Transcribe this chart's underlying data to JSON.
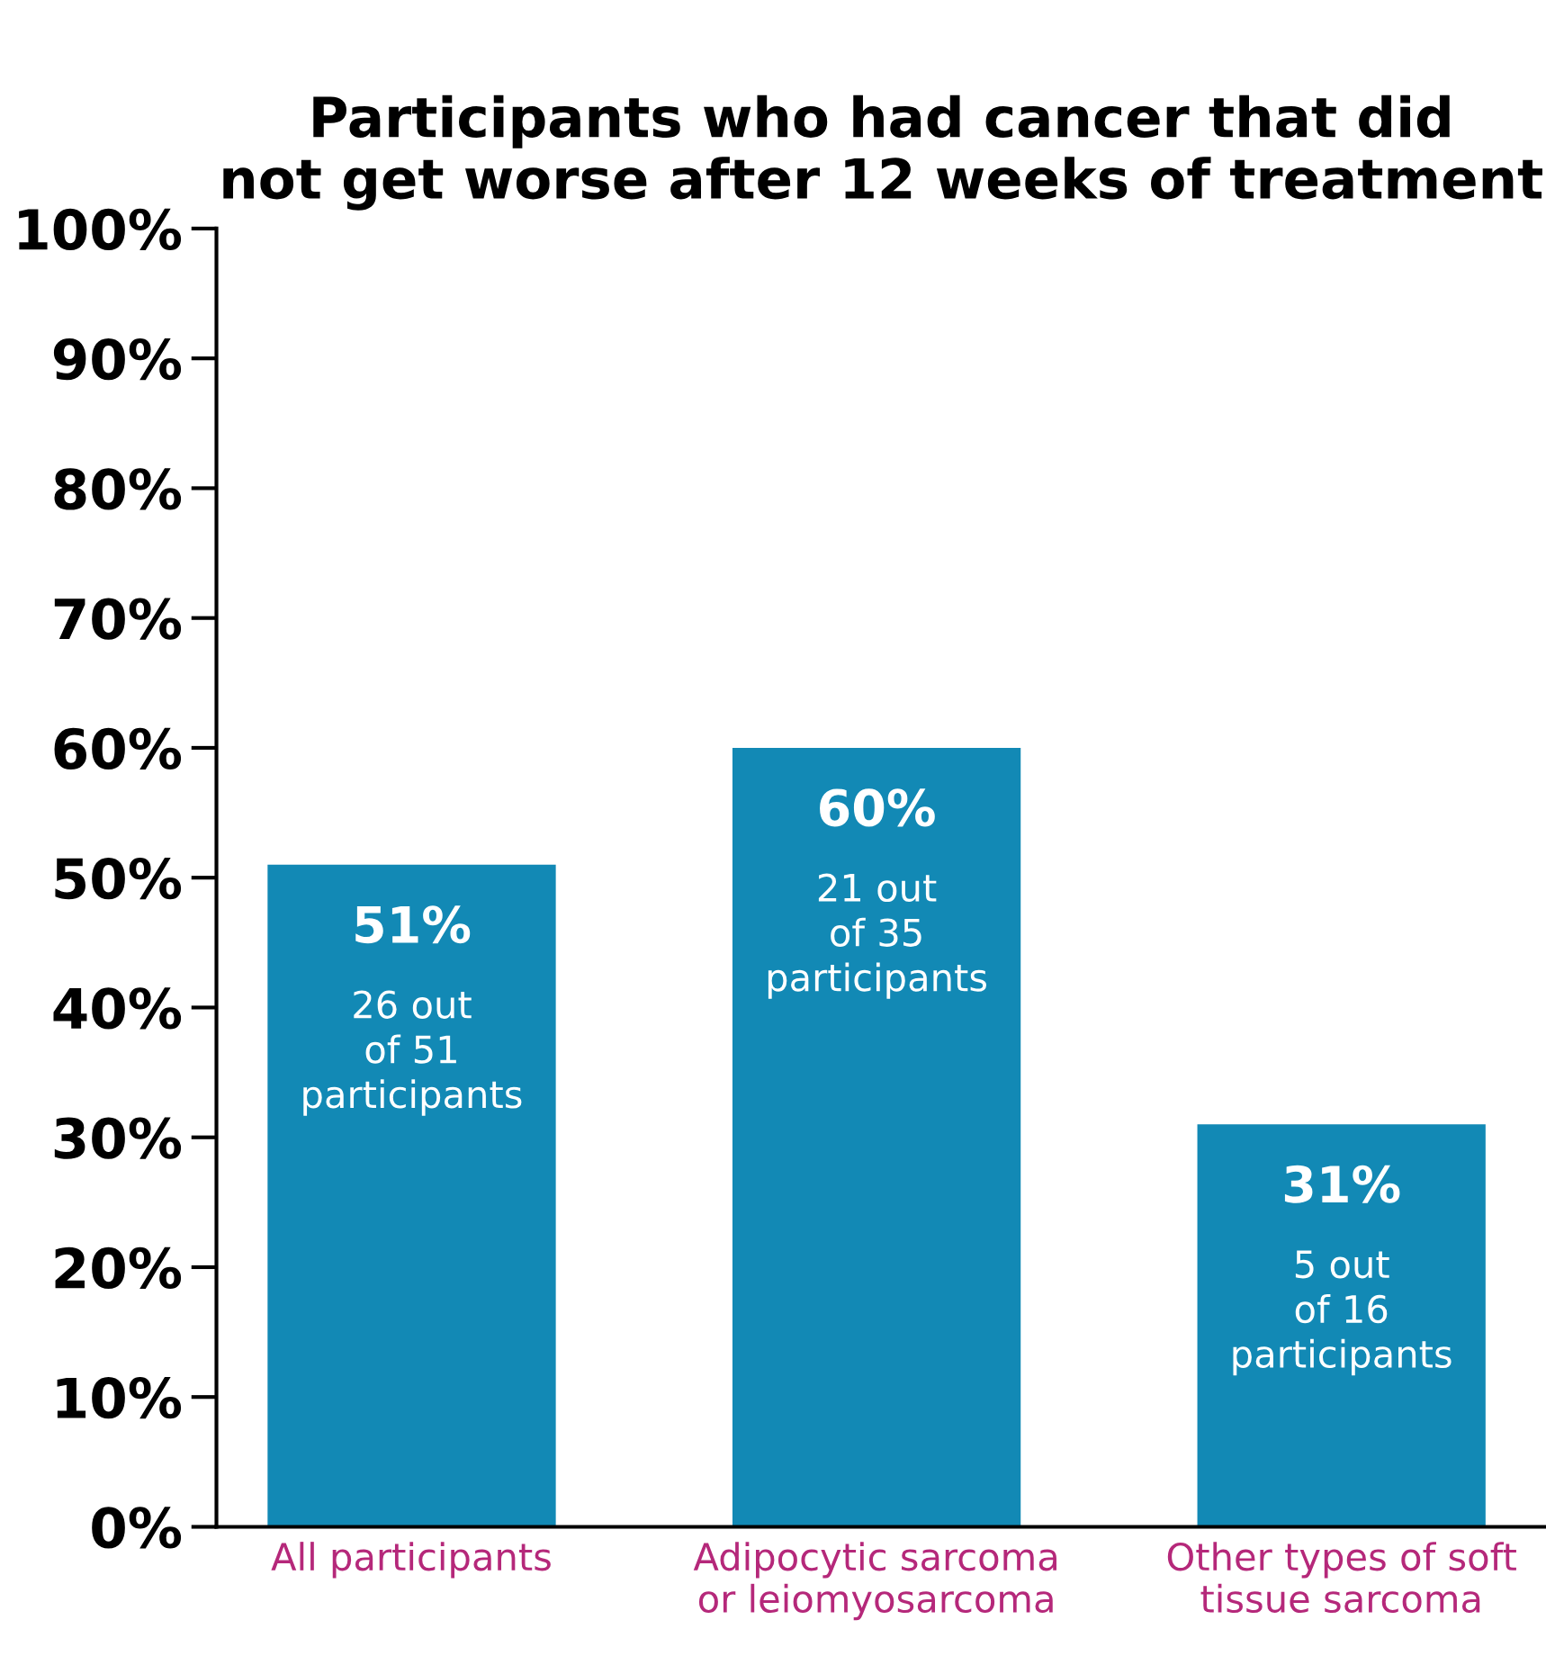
{
  "chart_data": {
    "type": "bar",
    "title": "Participants who had cancer that did\nnot get worse after 12 weeks of treatment",
    "categories": [
      "All participants",
      "Adipocytic sarcoma\nor leiomyosarcoma",
      "Other types of soft\ntissue sarcoma"
    ],
    "values": [
      51,
      60,
      31
    ],
    "color": "#1289b5",
    "value_labels": [
      "51%\n26 out\nof 51\nparticipants",
      "60%\n21 out\nof 35\nparticipants",
      "31%\n5 out\nof 16\nparticipants"
    ],
    "ylim": [
      0,
      100
    ],
    "yticks": [
      {
        "value": 0,
        "label": "0%"
      },
      {
        "value": 10,
        "label": "10%"
      },
      {
        "value": 20,
        "label": "20%"
      },
      {
        "value": 30,
        "label": "30%"
      },
      {
        "value": 40,
        "label": "40%"
      },
      {
        "value": 50,
        "label": "50%"
      },
      {
        "value": 60,
        "label": "60%"
      },
      {
        "value": 70,
        "label": "70%"
      },
      {
        "value": 80,
        "label": "80%"
      },
      {
        "value": 90,
        "label": "90%"
      },
      {
        "value": 100,
        "label": "100%"
      }
    ],
    "grid": false,
    "legend": false
  }
}
